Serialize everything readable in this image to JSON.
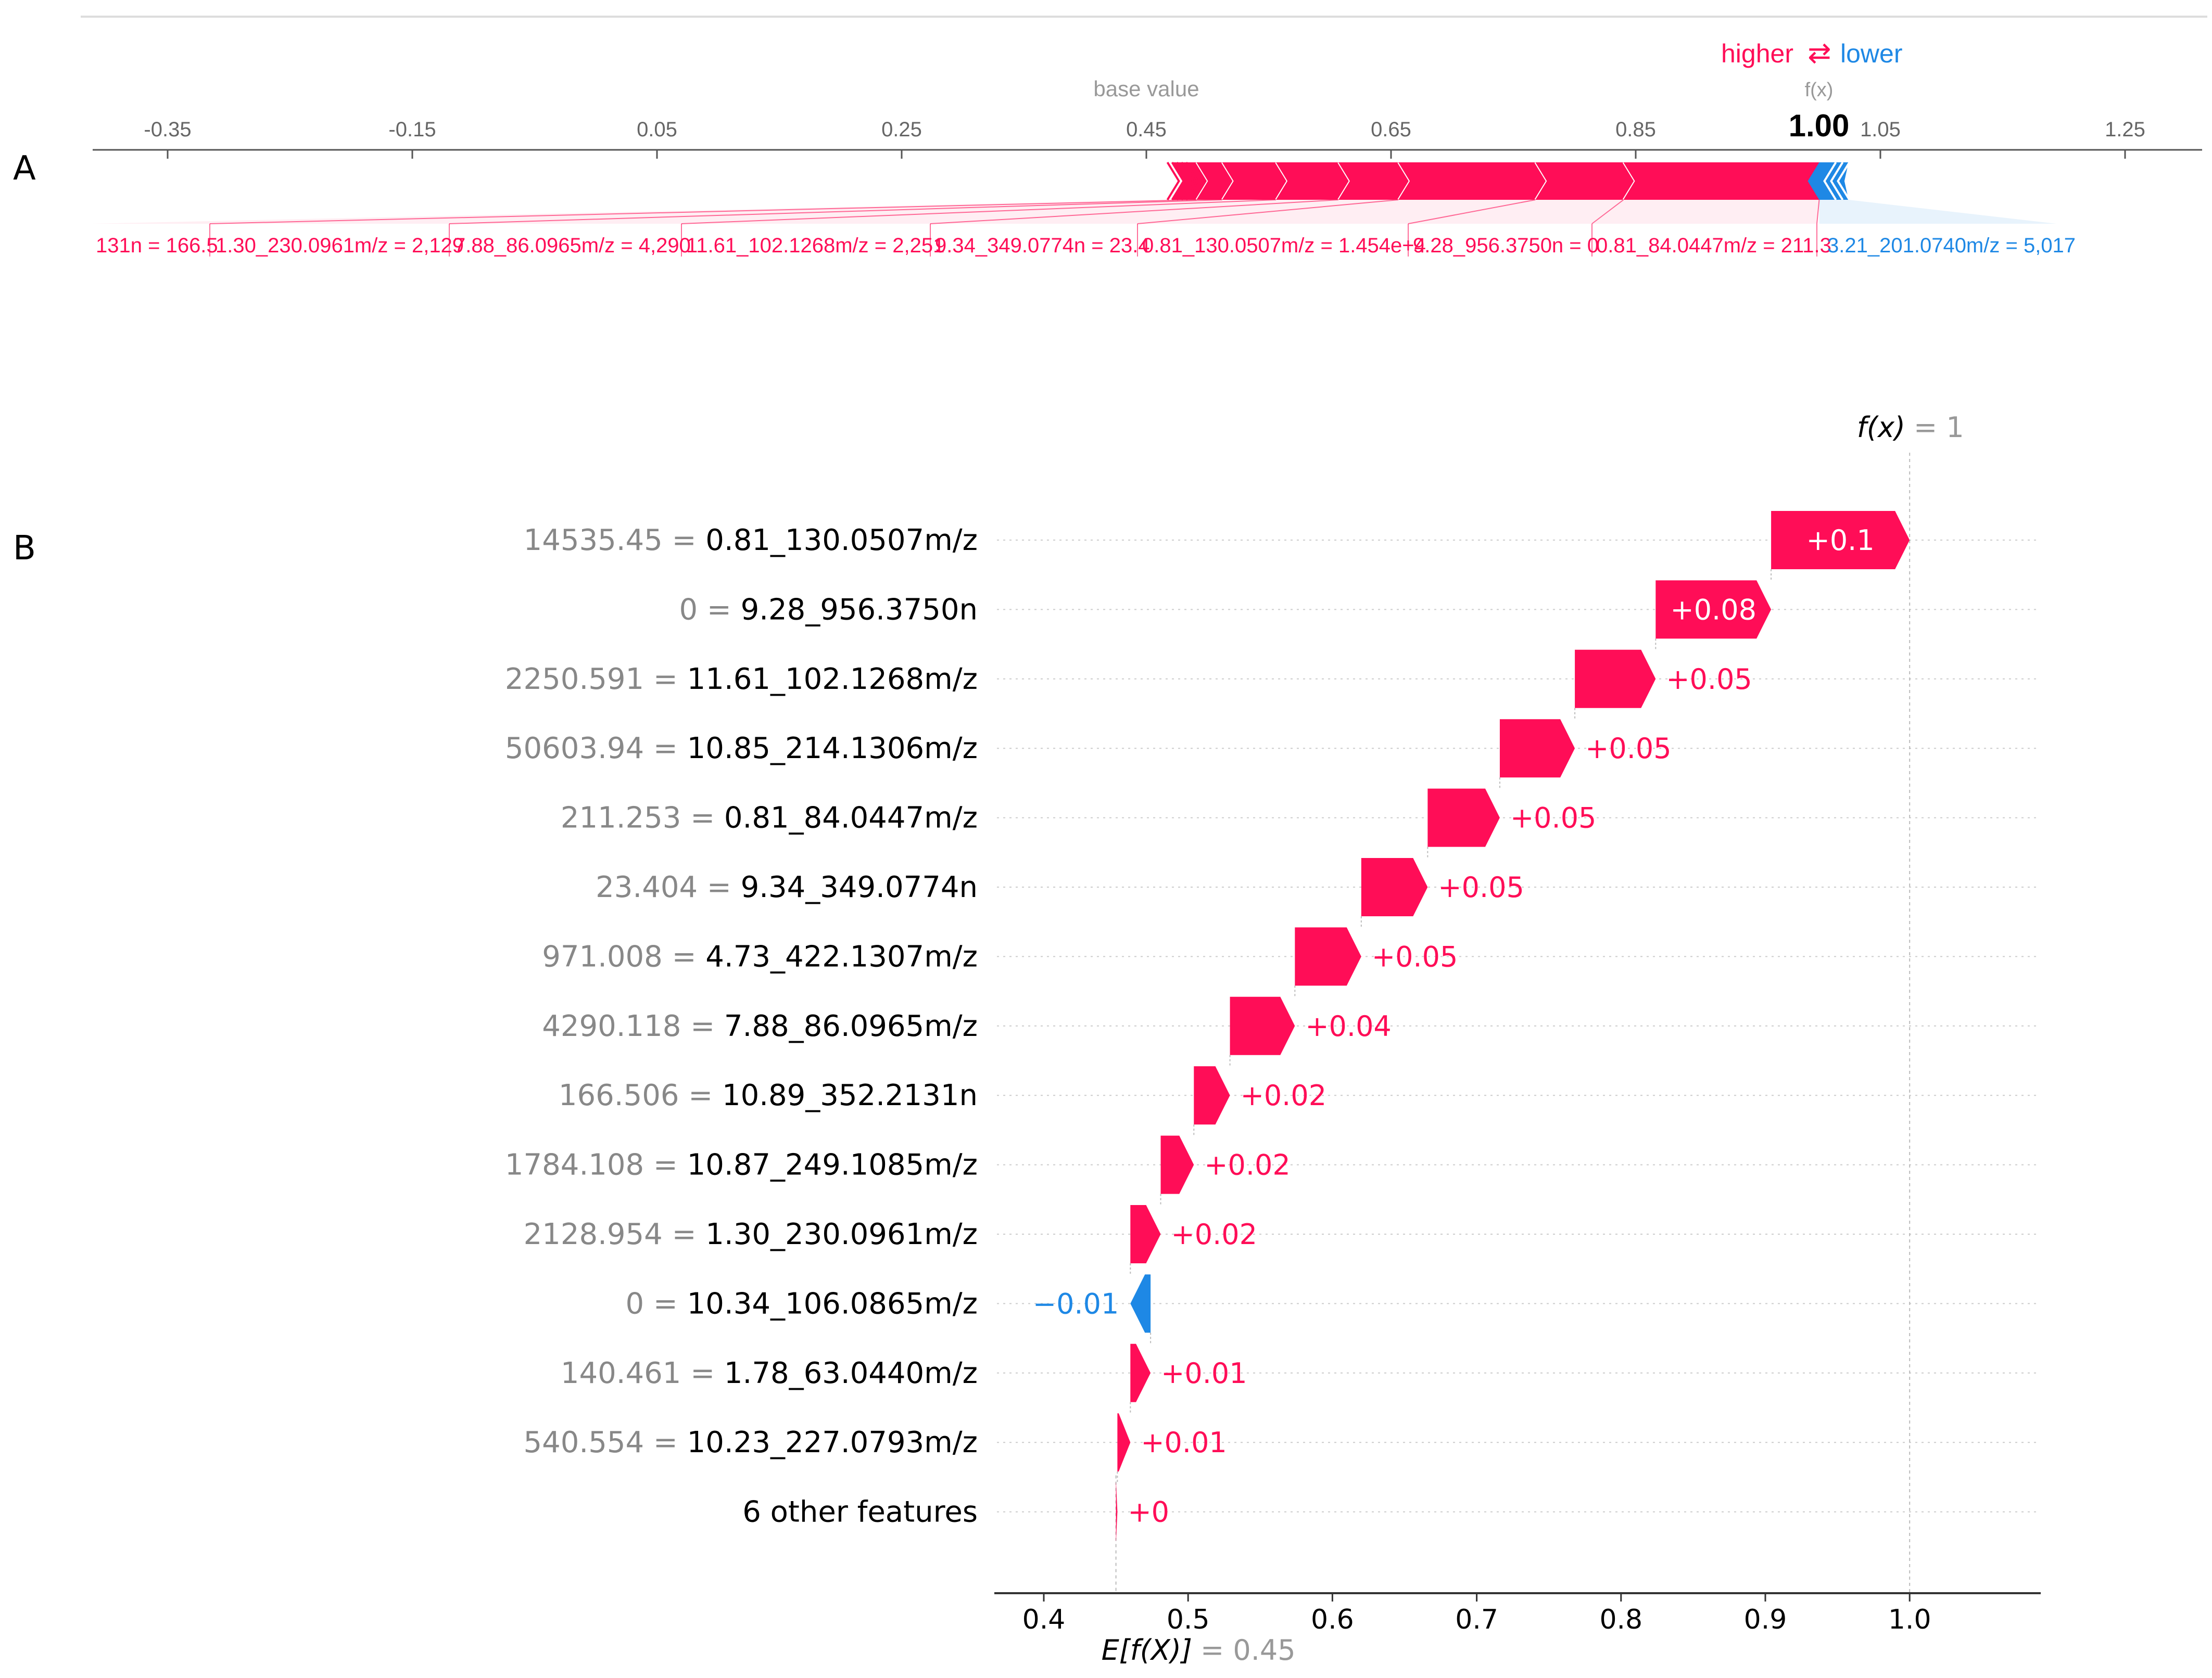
{
  "chart_data": [
    {
      "type": "force_plot",
      "panel_label": "A",
      "base_value_label": "base value",
      "fx_label": "f(x)",
      "fx_value_label": "1.00",
      "base_value": 0.45,
      "output_value": 1.0,
      "legend": {
        "higher": "higher",
        "arrows": "⇄",
        "lower": "lower"
      },
      "axis": {
        "ticks": [
          -0.35,
          -0.15,
          0.05,
          0.25,
          0.45,
          0.65,
          0.85,
          1.05,
          1.25
        ],
        "tick_labels": [
          "-0.35",
          "-0.15",
          "0.05",
          "0.25",
          "0.45",
          "0.65",
          "0.85",
          "1.05",
          "1.25"
        ]
      },
      "positive_features": [
        {
          "label": "131n = 166.5",
          "from": 0.4715,
          "to": 0.491
        },
        {
          "label": "1.30_230.0961m/z = 2,129",
          "from": 0.491,
          "to": 0.512
        },
        {
          "label": "7.88_86.0965m/z = 4,290",
          "from": 0.512,
          "to": 0.556
        },
        {
          "label": "11.61_102.1268m/z = 2,251",
          "from": 0.556,
          "to": 0.607
        },
        {
          "label": "9.34_349.0774n = 23.4",
          "from": 0.607,
          "to": 0.656
        },
        {
          "label": "0.81_130.0507m/z = 1.454e+4",
          "from": 0.656,
          "to": 0.768
        },
        {
          "label": "9.28_956.3750n = 0",
          "from": 0.768,
          "to": 0.84
        },
        {
          "label": "0.81_84.0447m/z = 211.3",
          "from": 0.84,
          "to": 1.0
        }
      ],
      "negative_features": [
        {
          "label": "3.21_201.0740m/z = 5,017",
          "from": 1.0,
          "to": 1.024
        }
      ]
    },
    {
      "type": "waterfall",
      "panel_label": "B",
      "fx_label": "f(x)",
      "fx_value_label": "= 1",
      "expected_label": "E[f(X)]",
      "expected_value_label": "= 0.45",
      "base_value": 0.45,
      "xlim": [
        0.37,
        1.09
      ],
      "xticks": [
        0.4,
        0.5,
        0.6,
        0.7,
        0.8,
        0.9,
        1.0
      ],
      "xtick_labels": [
        "0.4",
        "0.5",
        "0.6",
        "0.7",
        "0.8",
        "0.9",
        "1.0"
      ],
      "rows": [
        {
          "value": "14535.45",
          "feature": "0.81_130.0507m/z",
          "label": "+0.1",
          "start": 0.904,
          "end": 1.0
        },
        {
          "value": "0",
          "feature": "9.28_956.3750n",
          "label": "+0.08",
          "start": 0.824,
          "end": 0.904
        },
        {
          "value": "2250.591",
          "feature": "11.61_102.1268m/z",
          "label": "+0.05",
          "start": 0.768,
          "end": 0.824
        },
        {
          "value": "50603.94",
          "feature": "10.85_214.1306m/z",
          "label": "+0.05",
          "start": 0.716,
          "end": 0.768
        },
        {
          "value": "211.253",
          "feature": "0.81_84.0447m/z",
          "label": "+0.05",
          "start": 0.666,
          "end": 0.716
        },
        {
          "value": "23.404",
          "feature": "9.34_349.0774n",
          "label": "+0.05",
          "start": 0.62,
          "end": 0.666
        },
        {
          "value": "971.008",
          "feature": "4.73_422.1307m/z",
          "label": "+0.05",
          "start": 0.574,
          "end": 0.62
        },
        {
          "value": "4290.118",
          "feature": "7.88_86.0965m/z",
          "label": "+0.04",
          "start": 0.529,
          "end": 0.574
        },
        {
          "value": "166.506",
          "feature": "10.89_352.2131n",
          "label": "+0.02",
          "start": 0.504,
          "end": 0.529
        },
        {
          "value": "1784.108",
          "feature": "10.87_249.1085m/z",
          "label": "+0.02",
          "start": 0.481,
          "end": 0.504
        },
        {
          "value": "2128.954",
          "feature": "1.30_230.0961m/z",
          "label": "+0.02",
          "start": 0.46,
          "end": 0.481
        },
        {
          "value": "0",
          "feature": "10.34_106.0865m/z",
          "label": "−0.01",
          "start": 0.474,
          "end": 0.46
        },
        {
          "value": "140.461",
          "feature": "1.78_63.0440m/z",
          "label": "+0.01",
          "start": 0.46,
          "end": 0.474
        },
        {
          "value": "540.554",
          "feature": "10.23_227.0793m/z",
          "label": "+0.01",
          "start": 0.451,
          "end": 0.46
        },
        {
          "value": "",
          "feature": "6 other features",
          "label": "+0",
          "start": 0.45,
          "end": 0.451
        }
      ]
    }
  ],
  "colors": {
    "positive": "#ff0d57",
    "negative": "#1e88e5",
    "axis": "#333333",
    "muted": "#888888",
    "grid": "#cccccc"
  }
}
